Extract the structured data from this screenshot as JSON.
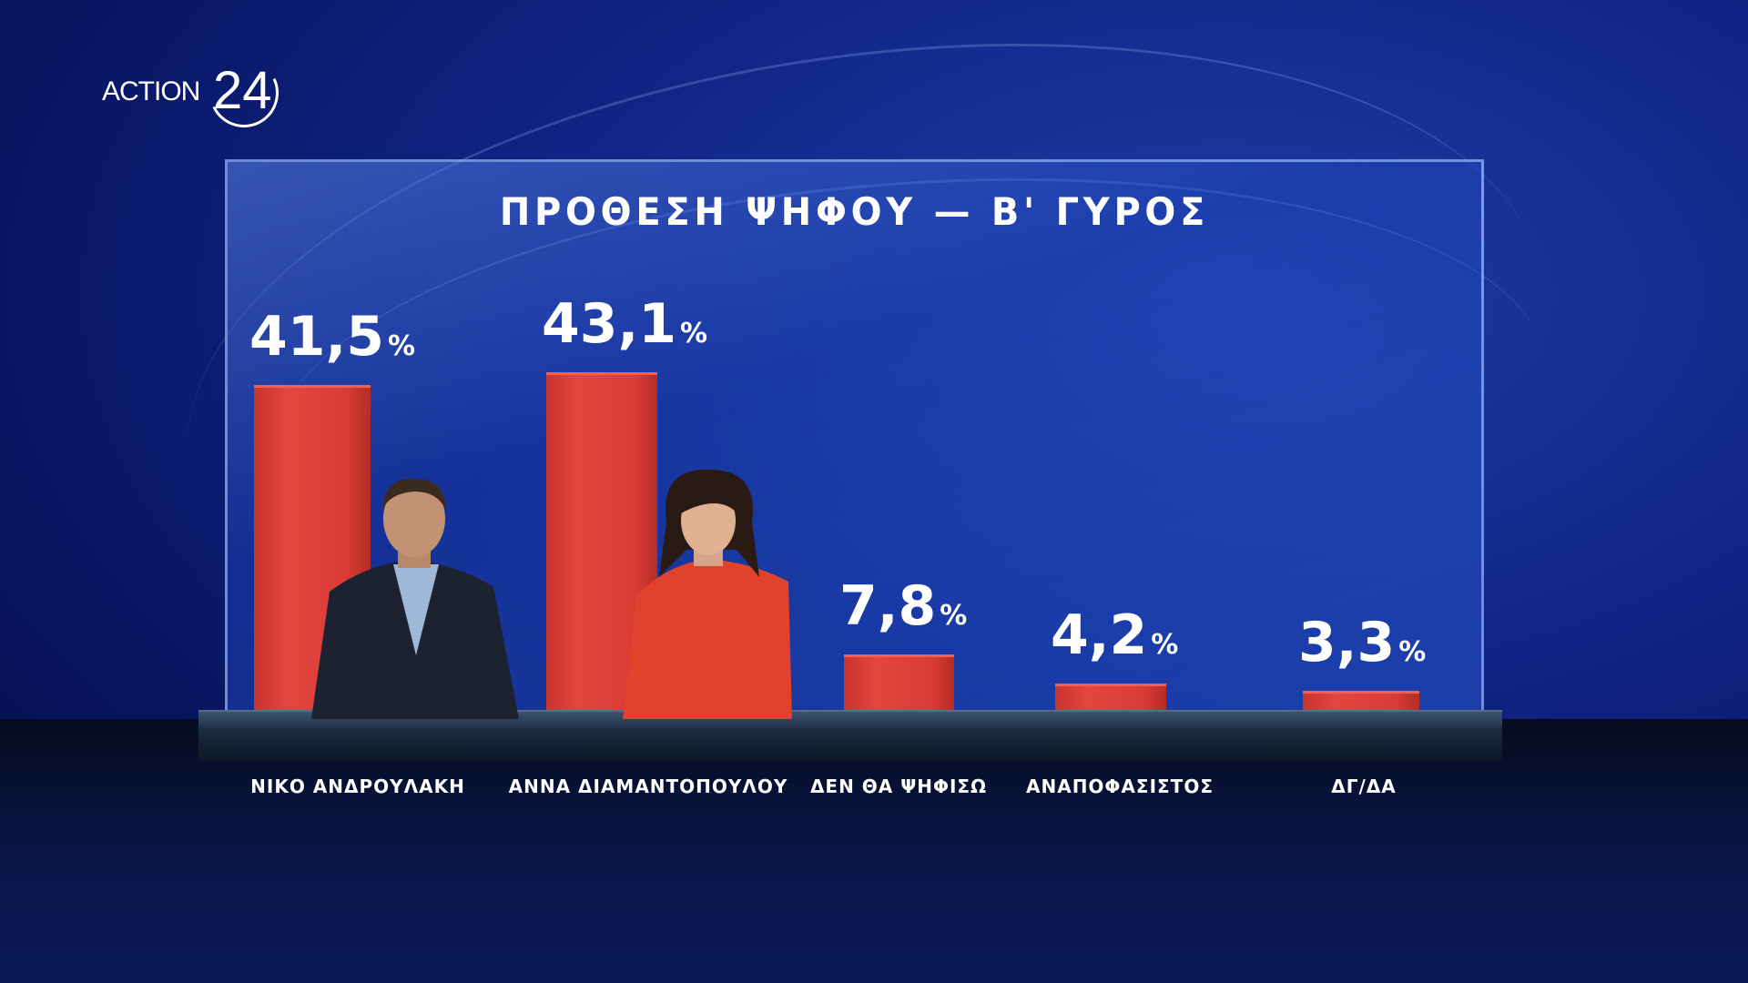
{
  "logo": "ACTION 24",
  "chart_data": {
    "type": "bar",
    "title": "ΠΡΟΘΕΣΗ ΨΗΦΟΥ — Β' ΓΥΡΟΣ",
    "categories": [
      "ΝΙΚΟ ΑΝΔΡΟΥΛΑΚΗ",
      "ΑΝΝΑ ΔΙΑΜΑΝΤΟΠΟΥΛΟΥ",
      "ΔΕΝ ΘΑ ΨΗΦΙΣΩ",
      "ΑΝΑΠΟΦΑΣΙΣΤΟΣ",
      "ΔΓ/ΔΑ"
    ],
    "values": [
      41.5,
      43.1,
      7.8,
      4.2,
      3.3
    ],
    "value_labels": [
      "41,5",
      "43,1",
      "7,8",
      "4,2",
      "3,3"
    ],
    "unit": "%",
    "bar_color": "#d83c35",
    "grid": false
  }
}
